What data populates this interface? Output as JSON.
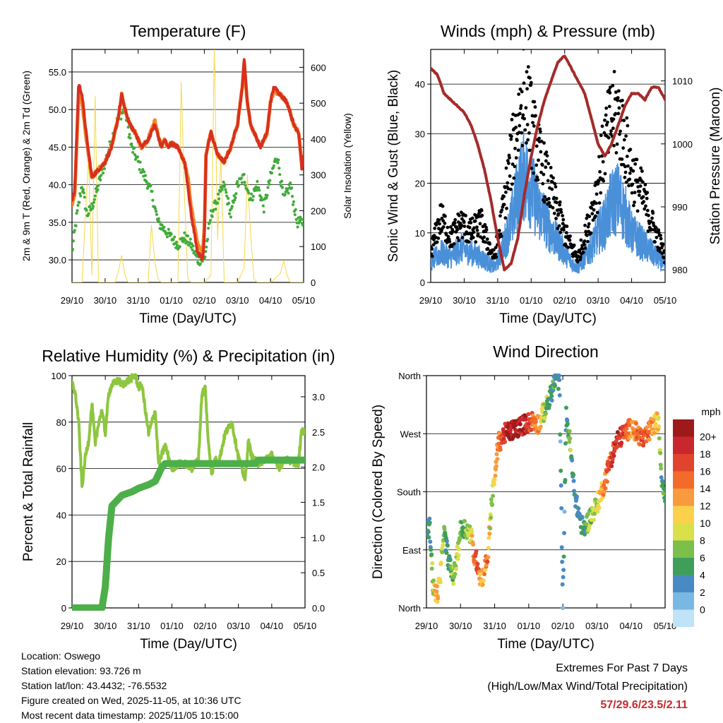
{
  "chart_data": [
    {
      "type": "line",
      "title": "Temperature (F)",
      "xlabel": "Time (Day/UTC)",
      "ylabel": "2m & 9m T (Red, Orange) & 2m Td (Green)",
      "y2label": "Solar Insolation (Yellow)",
      "x_ticks": [
        "29/10",
        "30/10",
        "31/10",
        "01/10",
        "02/10",
        "03/10",
        "04/10",
        "05/10"
      ],
      "ylim": [
        27,
        58
      ],
      "y_ticks": [
        "30.0",
        "35.0",
        "40.0",
        "45.0",
        "50.0",
        "55.0"
      ],
      "y2lim": [
        0,
        650
      ],
      "y2_ticks": [
        "0",
        "100",
        "200",
        "300",
        "400",
        "500",
        "600"
      ],
      "grid": true,
      "series": [
        {
          "name": "2m T",
          "color": "#d7301f",
          "axis": "left",
          "x": [
            0,
            0.08,
            0.14,
            0.2,
            0.3,
            0.45,
            0.6,
            0.8,
            1.0,
            1.2,
            1.4,
            1.5,
            1.6,
            1.75,
            1.9,
            2.1,
            2.3,
            2.5,
            2.7,
            2.8,
            2.9,
            3.0,
            3.2,
            3.4,
            3.5,
            3.6,
            3.8,
            3.95,
            4.0,
            4.05,
            4.2,
            4.4,
            4.6,
            4.8,
            5.0,
            5.15,
            5.2,
            5.3,
            5.4,
            5.5,
            5.7,
            5.9,
            6.0,
            6.1,
            6.3,
            6.5,
            6.7,
            6.85,
            6.95,
            7.0
          ],
          "values": [
            38,
            39,
            46,
            53.5,
            52,
            46,
            41,
            42,
            43,
            45,
            49,
            52,
            50,
            48,
            47,
            45,
            46,
            48,
            45,
            46,
            45,
            45.5,
            45,
            43,
            40,
            36,
            31,
            30,
            33,
            44,
            47,
            44,
            43,
            45,
            48,
            53,
            57,
            51,
            48,
            47,
            45,
            47,
            51,
            53,
            52,
            51,
            48,
            47,
            42,
            44
          ]
        },
        {
          "name": "9m T",
          "color": "#f68828",
          "axis": "left",
          "x": [
            0,
            0.08,
            0.14,
            0.2,
            0.3,
            0.45,
            0.6,
            0.8,
            1.0,
            1.2,
            1.4,
            1.5,
            1.6,
            1.75,
            1.9,
            2.1,
            2.3,
            2.5,
            2.7,
            2.8,
            2.9,
            3.0,
            3.2,
            3.4,
            3.5,
            3.6,
            3.8,
            3.95,
            4.0,
            4.05,
            4.2,
            4.4,
            4.6,
            4.8,
            5.0,
            5.15,
            5.2,
            5.3,
            5.4,
            5.5,
            5.7,
            5.9,
            6.0,
            6.1,
            6.3,
            6.5,
            6.7,
            6.85,
            6.95,
            7.0
          ],
          "values": [
            37.5,
            38.5,
            45,
            52,
            51,
            45.5,
            41,
            42,
            43,
            45,
            49,
            52,
            50,
            48,
            47,
            45,
            46,
            48.5,
            45,
            46,
            45,
            45.5,
            45,
            43,
            41,
            37,
            32,
            31,
            34,
            44,
            47,
            44,
            43,
            45,
            48,
            53,
            56,
            51,
            48,
            47,
            45,
            47,
            51,
            52.5,
            52,
            51,
            48,
            47,
            42.5,
            44
          ]
        },
        {
          "name": "2m Td",
          "color": "#41ab3a",
          "axis": "left",
          "x": [
            0,
            0.15,
            0.3,
            0.45,
            0.6,
            0.8,
            1.0,
            1.2,
            1.4,
            1.6,
            1.8,
            2.0,
            2.2,
            2.4,
            2.6,
            2.8,
            3.0,
            3.2,
            3.4,
            3.6,
            3.8,
            4.0,
            4.2,
            4.4,
            4.6,
            4.8,
            5.0,
            5.2,
            5.4,
            5.6,
            5.8,
            6.0,
            6.2,
            6.4,
            6.6,
            6.8,
            7.0
          ],
          "values": [
            31,
            36,
            40,
            36,
            37,
            40,
            43,
            46,
            49,
            50,
            45,
            43,
            41,
            39,
            35,
            34,
            33,
            32,
            33,
            32,
            30,
            30,
            36,
            38,
            40,
            36,
            40,
            41,
            38,
            40,
            37,
            41,
            44,
            38,
            40,
            35,
            35
          ]
        },
        {
          "name": "Solar Insolation",
          "color": "#f7d846",
          "axis": "right",
          "x": [
            0,
            0.3,
            0.5,
            0.6,
            0.7,
            0.8,
            1.0,
            1.3,
            1.4,
            1.5,
            1.6,
            1.7,
            2.0,
            2.3,
            2.4,
            2.5,
            2.6,
            2.7,
            3.0,
            3.2,
            3.3,
            3.4,
            3.5,
            3.6,
            4.0,
            4.2,
            4.3,
            4.4,
            4.5,
            4.6,
            4.8,
            5.0,
            5.2,
            5.3,
            5.4,
            5.5,
            5.6,
            6.0,
            6.3,
            6.4,
            6.5,
            6.6,
            6.7,
            7.0
          ],
          "values": [
            0,
            0,
            350,
            20,
            520,
            0,
            0,
            0,
            30,
            75,
            20,
            0,
            0,
            0,
            160,
            60,
            10,
            0,
            0,
            0,
            560,
            240,
            10,
            0,
            0,
            20,
            650,
            120,
            350,
            0,
            0,
            0,
            40,
            300,
            130,
            10,
            0,
            0,
            25,
            60,
            20,
            0,
            0,
            0
          ]
        }
      ]
    },
    {
      "type": "line",
      "title": "Winds (mph) & Pressure (mb)",
      "xlabel": "Time (Day/UTC)",
      "ylabel": "Sonic Wind & Gust (Blue, Black)",
      "y2label": "Station Pressure (Maroon)",
      "x_ticks": [
        "29/10",
        "30/10",
        "31/10",
        "01/10",
        "02/10",
        "03/10",
        "04/10",
        "05/10"
      ],
      "ylim": [
        0,
        47
      ],
      "y_ticks": [
        "0",
        "10",
        "20",
        "30",
        "40"
      ],
      "y2lim": [
        978,
        1015
      ],
      "y2_ticks": [
        "980",
        "990",
        "1000",
        "1010"
      ],
      "grid": true,
      "series": [
        {
          "name": "Sonic Wind",
          "color": "#4a90d9",
          "axis": "left",
          "x": [
            0,
            0.3,
            0.6,
            0.9,
            1.2,
            1.5,
            1.7,
            1.9,
            2.1,
            2.4,
            2.6,
            2.8,
            3.0,
            3.2,
            3.4,
            3.6,
            3.8,
            4.0,
            4.2,
            4.4,
            4.6,
            4.8,
            5.0,
            5.2,
            5.4,
            5.6,
            5.8,
            6.0,
            6.3,
            6.6,
            6.9,
            7.0
          ],
          "values": [
            4,
            6,
            5,
            7,
            6,
            5,
            4,
            3,
            6,
            12,
            18,
            22,
            19,
            15,
            13,
            10,
            8,
            6,
            4,
            3,
            5,
            7,
            10,
            12,
            16,
            17,
            14,
            10,
            8,
            6,
            4,
            3
          ]
        },
        {
          "name": "Gust",
          "color": "#000000",
          "axis": "left",
          "x": [
            0,
            0.3,
            0.6,
            0.9,
            1.2,
            1.5,
            1.7,
            1.9,
            2.1,
            2.4,
            2.6,
            2.8,
            3.0,
            3.2,
            3.4,
            3.6,
            3.8,
            4.0,
            4.2,
            4.4,
            4.6,
            4.8,
            5.0,
            5.2,
            5.4,
            5.6,
            5.8,
            6.0,
            6.3,
            6.6,
            6.9,
            7.0
          ],
          "values": [
            6,
            13,
            9,
            12,
            10,
            12,
            8,
            5,
            12,
            25,
            32,
            40,
            32,
            26,
            22,
            18,
            14,
            10,
            7,
            5,
            9,
            14,
            20,
            28,
            33,
            34,
            28,
            22,
            18,
            12,
            7,
            5
          ]
        },
        {
          "name": "Station Pressure",
          "color": "#a52a2a",
          "axis": "right",
          "x": [
            0,
            0.2,
            0.4,
            0.6,
            0.8,
            1.0,
            1.2,
            1.4,
            1.6,
            1.8,
            2.0,
            2.2,
            2.4,
            2.6,
            2.8,
            3.0,
            3.2,
            3.4,
            3.6,
            3.8,
            4.0,
            4.2,
            4.4,
            4.6,
            4.8,
            5.0,
            5.2,
            5.4,
            5.6,
            5.8,
            6.0,
            6.2,
            6.4,
            6.6,
            6.8,
            7.0
          ],
          "values": [
            1012,
            1011,
            1008,
            1007,
            1006,
            1005,
            1003,
            1000,
            996,
            991,
            985,
            980,
            981,
            985,
            992,
            998,
            1003,
            1007,
            1010,
            1013,
            1014,
            1012,
            1010,
            1008,
            1004,
            1000,
            998,
            1000,
            1003,
            1006,
            1008,
            1008,
            1007,
            1009,
            1009,
            1007
          ]
        }
      ]
    },
    {
      "type": "line",
      "title": "Relative Humidity (%) & Precipitation (in)",
      "xlabel": "Time (Day/UTC)",
      "ylabel": "Percent & Total Rainfall",
      "x_ticks": [
        "29/10",
        "30/10",
        "31/10",
        "01/10",
        "02/10",
        "03/10",
        "04/10",
        "05/10"
      ],
      "ylim": [
        0,
        100
      ],
      "y_ticks": [
        "0",
        "20",
        "40",
        "60",
        "80",
        "100"
      ],
      "y2lim": [
        0,
        3.3
      ],
      "y2_ticks": [
        "0.0",
        "0.5",
        "1.0",
        "1.5",
        "2.0",
        "2.5",
        "3.0"
      ],
      "grid": true,
      "series": [
        {
          "name": "Relative Humidity",
          "color": "#8dc63f",
          "axis": "left",
          "x": [
            0,
            0.1,
            0.2,
            0.3,
            0.4,
            0.5,
            0.6,
            0.7,
            0.8,
            0.9,
            1.0,
            1.1,
            1.2,
            1.4,
            1.5,
            1.7,
            1.9,
            2.0,
            2.1,
            2.3,
            2.5,
            2.6,
            2.8,
            3.0,
            3.2,
            3.4,
            3.6,
            3.7,
            3.8,
            3.9,
            4.0,
            4.1,
            4.2,
            4.3,
            4.4,
            4.6,
            4.8,
            5.0,
            5.2,
            5.3,
            5.4,
            5.6,
            5.8,
            6.0,
            6.2,
            6.4,
            6.6,
            6.8,
            6.9,
            7.0
          ],
          "values": [
            97,
            92,
            80,
            52,
            65,
            72,
            88,
            70,
            80,
            85,
            75,
            92,
            96,
            98,
            96,
            98,
            100,
            95,
            96,
            75,
            85,
            62,
            70,
            60,
            62,
            62,
            60,
            62,
            64,
            92,
            95,
            70,
            58,
            64,
            62,
            75,
            80,
            65,
            55,
            72,
            65,
            62,
            64,
            66,
            60,
            64,
            63,
            62,
            77,
            75
          ]
        },
        {
          "name": "Total Rainfall",
          "color": "#4daf4a",
          "axis": "right",
          "x": [
            0,
            0.5,
            0.9,
            1.0,
            1.1,
            1.2,
            1.3,
            1.5,
            1.8,
            2.0,
            2.3,
            2.5,
            2.7,
            2.8,
            3.0,
            4.0,
            5.0,
            5.5,
            5.6,
            6.0,
            7.0
          ],
          "values": [
            0,
            0,
            0,
            0.3,
            1.0,
            1.45,
            1.5,
            1.6,
            1.65,
            1.7,
            1.75,
            1.8,
            2.0,
            2.05,
            2.05,
            2.05,
            2.05,
            2.05,
            2.1,
            2.1,
            2.1
          ]
        }
      ]
    },
    {
      "type": "scatter",
      "title": "Wind Direction",
      "xlabel": "Time (Day/UTC)",
      "ylabel": "Direction (Colored By Speed)",
      "x_ticks": [
        "29/10",
        "30/10",
        "31/10",
        "01/10",
        "02/10",
        "03/10",
        "04/10",
        "05/10"
      ],
      "y_ticks": [
        "North",
        "East",
        "South",
        "West",
        "North"
      ],
      "ylim": [
        0,
        360
      ],
      "color_by": "speed",
      "colorbar": {
        "title": "mph",
        "labels": [
          "20+",
          "18",
          "16",
          "14",
          "12",
          "10",
          "8",
          "6",
          "4",
          "2",
          "0"
        ],
        "colors": [
          "#9e1a1a",
          "#c8282d",
          "#e0442e",
          "#f26b2a",
          "#f99a3e",
          "#fbd14b",
          "#d9e04a",
          "#7cbf4b",
          "#3f9e5a",
          "#4a8ac4",
          "#7ab8e4",
          "#bfe3f7"
        ]
      },
      "points": {
        "x": [
          0,
          0.1,
          0.2,
          0.3,
          0.4,
          0.5,
          0.6,
          0.7,
          0.8,
          0.9,
          1.0,
          1.1,
          1.2,
          1.3,
          1.4,
          1.5,
          1.6,
          1.7,
          1.8,
          1.9,
          2.0,
          2.1,
          2.3,
          2.5,
          2.7,
          2.9,
          3.1,
          3.3,
          3.4,
          3.5,
          3.6,
          3.7,
          3.8,
          3.9,
          4.0,
          4.1,
          4.2,
          4.3,
          4.4,
          4.6,
          4.8,
          5.0,
          5.2,
          5.4,
          5.6,
          5.8,
          6.0,
          6.2,
          6.4,
          6.6,
          6.8,
          6.9,
          7.0
        ],
        "direction": [
          120,
          125,
          30,
          20,
          40,
          120,
          90,
          60,
          50,
          80,
          120,
          125,
          120,
          115,
          80,
          70,
          40,
          60,
          80,
          160,
          200,
          255,
          270,
          275,
          280,
          285,
          290,
          285,
          300,
          310,
          320,
          340,
          360,
          350,
          5,
          300,
          260,
          200,
          160,
          120,
          140,
          160,
          190,
          230,
          260,
          270,
          280,
          270,
          260,
          280,
          290,
          200,
          180
        ],
        "speed": [
          4,
          3,
          8,
          12,
          10,
          6,
          3,
          5,
          6,
          8,
          6,
          5,
          7,
          8,
          14,
          16,
          10,
          12,
          14,
          6,
          10,
          12,
          18,
          20,
          20,
          18,
          14,
          12,
          8,
          6,
          4,
          4,
          3,
          2,
          1,
          3,
          6,
          4,
          2,
          4,
          6,
          8,
          12,
          16,
          18,
          16,
          12,
          14,
          16,
          12,
          10,
          4,
          3
        ]
      }
    }
  ],
  "info": {
    "location": "Location: Oswego",
    "elevation": "Station elevation: 93.726 m",
    "latlon": "Station lat/lon: 43.4432; -76.5532",
    "created": "Figure created on Wed, 2025-11-05, at 10:36 UTC",
    "recent": "Most recent data timestamp: 2025/11/05 10:15:00"
  },
  "extremes": {
    "title": "Extremes For Past 7 Days",
    "subtitle": "(High/Low/Max Wind/Total Precipitation)",
    "values": "57/29.6/23.5/2.11"
  }
}
